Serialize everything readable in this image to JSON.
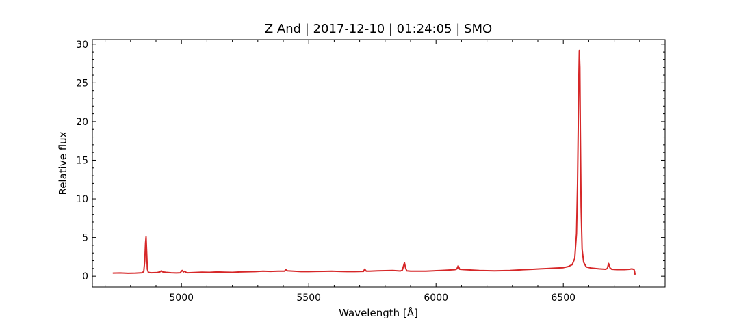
{
  "chart_data": {
    "type": "line",
    "title": "Z And | 2017-12-10 | 01:24:05 | SMO",
    "xlabel": "Wavelength [Å]",
    "ylabel": "Relative flux",
    "xlim": [
      4650,
      6900
    ],
    "ylim": [
      -1.4,
      30.6
    ],
    "xticks": [
      5000,
      5500,
      6000,
      6500
    ],
    "yticks": [
      0,
      5,
      10,
      15,
      20,
      25,
      30
    ],
    "grid": false,
    "legend": "none",
    "colors": {
      "line": "#d62728",
      "axes": "#000000"
    },
    "series": [
      {
        "x": [
          4730,
          4760,
          4790,
          4820,
          4845,
          4852,
          4856,
          4859,
          4861,
          4863,
          4866,
          4870,
          4880,
          4905,
          4915,
          4921,
          4927,
          4940,
          4960,
          4980,
          4995,
          5003,
          5008,
          5013,
          5018,
          5025,
          5050,
          5080,
          5110,
          5140,
          5170,
          5200,
          5230,
          5260,
          5290,
          5320,
          5350,
          5380,
          5405,
          5410,
          5416,
          5440,
          5470,
          5500,
          5530,
          5560,
          5590,
          5620,
          5650,
          5680,
          5710,
          5715,
          5720,
          5726,
          5740,
          5770,
          5800,
          5830,
          5860,
          5868,
          5872,
          5876,
          5880,
          5885,
          5900,
          5930,
          5960,
          5990,
          6020,
          6050,
          6075,
          6082,
          6087,
          6093,
          6110,
          6140,
          6170,
          6200,
          6230,
          6260,
          6290,
          6320,
          6350,
          6380,
          6410,
          6440,
          6470,
          6500,
          6520,
          6535,
          6545,
          6552,
          6556,
          6559,
          6561,
          6563,
          6565,
          6567,
          6570,
          6574,
          6580,
          6590,
          6610,
          6640,
          6665,
          6673,
          6678,
          6683,
          6690,
          6710,
          6740,
          6760,
          6770,
          6775,
          6778,
          6780,
          6782
        ],
        "values": [
          0.4,
          0.42,
          0.38,
          0.4,
          0.45,
          0.6,
          2.0,
          4.3,
          5.1,
          3.5,
          0.9,
          0.5,
          0.45,
          0.48,
          0.55,
          0.7,
          0.55,
          0.5,
          0.45,
          0.42,
          0.45,
          0.75,
          0.55,
          0.65,
          0.5,
          0.45,
          0.48,
          0.52,
          0.5,
          0.55,
          0.52,
          0.5,
          0.55,
          0.58,
          0.6,
          0.65,
          0.62,
          0.65,
          0.65,
          0.85,
          0.7,
          0.65,
          0.6,
          0.6,
          0.62,
          0.63,
          0.65,
          0.62,
          0.6,
          0.6,
          0.62,
          0.62,
          0.92,
          0.65,
          0.65,
          0.7,
          0.72,
          0.75,
          0.68,
          0.8,
          1.3,
          1.75,
          1.1,
          0.7,
          0.65,
          0.65,
          0.65,
          0.7,
          0.75,
          0.8,
          0.85,
          0.95,
          1.35,
          0.9,
          0.85,
          0.8,
          0.75,
          0.72,
          0.7,
          0.72,
          0.75,
          0.8,
          0.85,
          0.9,
          0.95,
          1.0,
          1.05,
          1.1,
          1.25,
          1.5,
          2.3,
          5.5,
          12.0,
          20.0,
          25.5,
          29.2,
          27.0,
          19.0,
          9.0,
          3.5,
          1.8,
          1.2,
          1.05,
          0.95,
          0.9,
          1.0,
          1.65,
          1.1,
          0.9,
          0.85,
          0.85,
          0.9,
          0.95,
          0.9,
          0.85,
          0.6,
          0.2
        ]
      }
    ]
  }
}
